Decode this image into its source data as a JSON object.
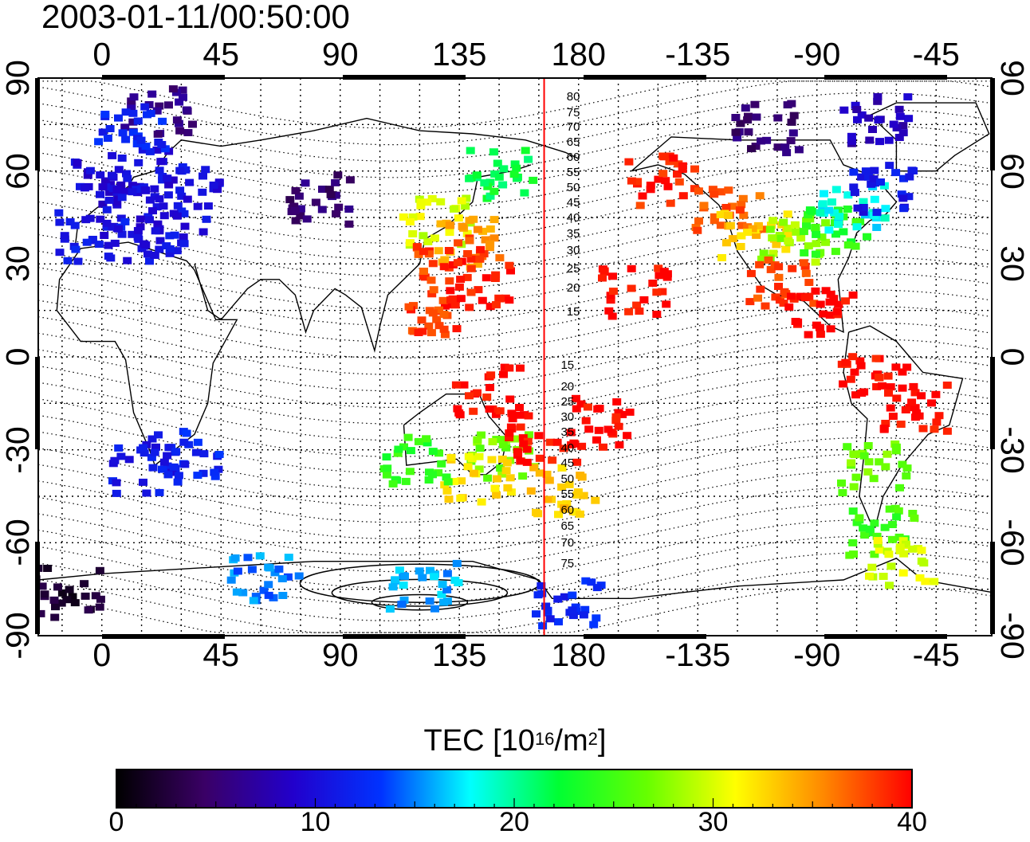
{
  "title": "2003-01-11/00:50:00",
  "axes": {
    "top_lon_ticks": [
      "0",
      "45",
      "90",
      "135",
      "180",
      "-135",
      "-90",
      "-45"
    ],
    "bottom_lon_ticks": [
      "0",
      "45",
      "90",
      "135",
      "180",
      "-135",
      "-90",
      "-45"
    ],
    "left_lat_ticks": [
      "90",
      "60",
      "30",
      "0",
      "-30",
      "-60",
      "-90"
    ],
    "right_lat_ticks": [
      "90",
      "60",
      "30",
      "0",
      "-30",
      "-60",
      "-90"
    ]
  },
  "contour_labels_north": [
    "80",
    "75",
    "70",
    "65",
    "60",
    "55",
    "50",
    "45",
    "40",
    "35",
    "30",
    "25",
    "20",
    "15"
  ],
  "contour_labels_south": [
    "15",
    "20",
    "25",
    "30",
    "35",
    "40",
    "45",
    "50",
    "55",
    "60",
    "65",
    "70",
    "75"
  ],
  "colorbar": {
    "label_prefix": "TEC  [10",
    "label_exp": "16",
    "label_mid": "/m",
    "label_exp2": "2",
    "label_suffix": "]",
    "ticks": [
      "0",
      "10",
      "20",
      "30",
      "40"
    ],
    "min": 0,
    "max": 40,
    "colormap_stops": [
      "#000000",
      "#3a0066",
      "#2200cc",
      "#0033ff",
      "#00ffff",
      "#00ff33",
      "#66ff00",
      "#ffff00",
      "#ff8800",
      "#ff0000"
    ]
  },
  "terminator_longitude": 167,
  "terminator_color": "#ff0000",
  "colors": {
    "background": "#ffffff",
    "frame": "#000000"
  },
  "map_extent": {
    "lon_min": -24,
    "lon_max": 336,
    "lat_min": -90,
    "lat_max": 90
  },
  "tec_patches": [
    {
      "lon": 0,
      "lat": 57,
      "tec": 9.5
    },
    {
      "lon": 15,
      "lat": 62,
      "tec": 10
    },
    {
      "lon": 30,
      "lat": 55,
      "tec": 10.5
    },
    {
      "lon": 10,
      "lat": 45,
      "tec": 10
    },
    {
      "lon": 25,
      "lat": 40,
      "tec": 10.5
    },
    {
      "lon": -5,
      "lat": 40,
      "tec": 11
    },
    {
      "lon": 80,
      "lat": 52,
      "tec": 5
    },
    {
      "lon": 20,
      "lat": 80,
      "tec": 6
    },
    {
      "lon": 10,
      "lat": 75,
      "tec": 12
    },
    {
      "lon": 30,
      "lat": -30,
      "tec": 12
    },
    {
      "lon": 15,
      "lat": -35,
      "tec": 11
    },
    {
      "lon": 125,
      "lat": 45,
      "tec": 30
    },
    {
      "lon": 138,
      "lat": 38,
      "tec": 35
    },
    {
      "lon": 130,
      "lat": 32,
      "tec": 38
    },
    {
      "lon": 140,
      "lat": 25,
      "tec": 40
    },
    {
      "lon": 150,
      "lat": 60,
      "tec": 22
    },
    {
      "lon": 125,
      "lat": 15,
      "tec": 38
    },
    {
      "lon": 145,
      "lat": -10,
      "tec": 40
    },
    {
      "lon": 150,
      "lat": -30,
      "tec": 27
    },
    {
      "lon": 140,
      "lat": -38,
      "tec": 32
    },
    {
      "lon": 118,
      "lat": -32,
      "tec": 24
    },
    {
      "lon": 172,
      "lat": -42,
      "tec": 33
    },
    {
      "lon": 165,
      "lat": -25,
      "tec": 40
    },
    {
      "lon": 185,
      "lat": -20,
      "tec": 40
    },
    {
      "lon": 200,
      "lat": 22,
      "tec": 40
    },
    {
      "lon": 210,
      "lat": 58,
      "tec": 39
    },
    {
      "lon": 235,
      "lat": 48,
      "tec": 37
    },
    {
      "lon": 245,
      "lat": 40,
      "tec": 33
    },
    {
      "lon": 260,
      "lat": 38,
      "tec": 28
    },
    {
      "lon": 275,
      "lat": 42,
      "tec": 24
    },
    {
      "lon": 282,
      "lat": 50,
      "tec": 18
    },
    {
      "lon": 295,
      "lat": 55,
      "tec": 11
    },
    {
      "lon": 255,
      "lat": 25,
      "tec": 38
    },
    {
      "lon": 270,
      "lat": 15,
      "tec": 40
    },
    {
      "lon": 290,
      "lat": -5,
      "tec": 40
    },
    {
      "lon": 305,
      "lat": -15,
      "tec": 40
    },
    {
      "lon": 290,
      "lat": -35,
      "tec": 27
    },
    {
      "lon": 293,
      "lat": -55,
      "tec": 25
    },
    {
      "lon": 300,
      "lat": -65,
      "tec": 30
    },
    {
      "lon": 250,
      "lat": 75,
      "tec": 5
    },
    {
      "lon": 290,
      "lat": 78,
      "tec": 8
    },
    {
      "lon": 120,
      "lat": -73,
      "tec": 16
    },
    {
      "lon": 60,
      "lat": -70,
      "tec": 15
    },
    {
      "lon": 175,
      "lat": -78,
      "tec": 12
    },
    {
      "lon": -15,
      "lat": -75,
      "tec": 2
    }
  ]
}
